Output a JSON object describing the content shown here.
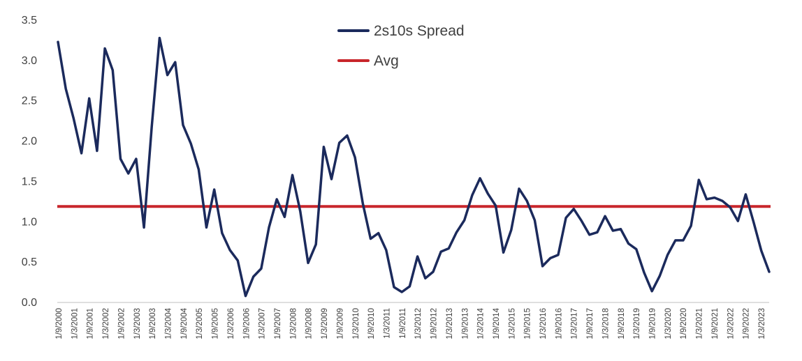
{
  "chart_data": {
    "type": "line",
    "title": "",
    "xlabel": "",
    "ylabel": "",
    "ylim": [
      0,
      3.5
    ],
    "yticks": [
      "0.0",
      "0.5",
      "1.0",
      "1.5",
      "2.0",
      "2.5",
      "3.0",
      "3.5"
    ],
    "grid": false,
    "legend_position": "top-center",
    "x_tick_labels": [
      "1/9/2000",
      "1/3/2001",
      "1/9/2001",
      "1/3/2002",
      "1/9/2002",
      "1/3/2003",
      "1/9/2003",
      "1/3/2004",
      "1/9/2004",
      "1/3/2005",
      "1/9/2005",
      "1/3/2006",
      "1/9/2006",
      "1/3/2007",
      "1/9/2007",
      "1/3/2008",
      "1/9/2008",
      "1/3/2009",
      "1/9/2009",
      "1/3/2010",
      "1/9/2010",
      "1/3/2011",
      "1/9/2011",
      "1/3/2012",
      "1/9/2012",
      "1/3/2013",
      "1/9/2013",
      "1/3/2014",
      "1/9/2014",
      "1/3/2015",
      "1/9/2015",
      "1/3/2016",
      "1/9/2016",
      "1/3/2017",
      "1/9/2017",
      "1/3/2018",
      "1/9/2018",
      "1/3/2019",
      "1/9/2019",
      "1/3/2020",
      "1/9/2020",
      "1/3/2021",
      "1/9/2021",
      "1/3/2022",
      "1/9/2022",
      "1/3/2023"
    ],
    "series": [
      {
        "name": "2s10s Spread",
        "color": "#1b2a5c",
        "values": [
          3.23,
          2.65,
          2.28,
          1.85,
          2.53,
          1.88,
          3.15,
          2.88,
          1.78,
          1.6,
          1.78,
          0.93,
          2.18,
          3.28,
          2.82,
          2.98,
          2.2,
          1.97,
          1.65,
          0.93,
          1.4,
          0.86,
          0.65,
          0.52,
          0.08,
          0.32,
          0.42,
          0.93,
          1.28,
          1.06,
          1.58,
          1.13,
          0.49,
          0.72,
          1.93,
          1.53,
          1.98,
          2.07,
          1.8,
          1.23,
          0.79,
          0.86,
          0.65,
          0.19,
          0.13,
          0.2,
          0.57,
          0.3,
          0.38,
          0.63,
          0.67,
          0.87,
          1.02,
          1.33,
          1.54,
          1.35,
          1.2,
          0.62,
          0.9,
          1.41,
          1.26,
          1.02,
          0.45,
          0.55,
          0.59,
          1.05,
          1.16,
          1.01,
          0.84,
          0.87,
          1.07,
          0.89,
          0.91,
          0.73,
          0.66,
          0.37,
          0.14,
          0.33,
          0.59,
          0.77,
          0.77,
          0.95,
          1.52,
          1.28,
          1.3,
          1.26,
          1.18,
          1.01,
          1.34,
          1.0,
          0.64,
          0.38
        ]
      },
      {
        "name": "Avg",
        "color": "#c8262b",
        "values": [
          1.19
        ]
      }
    ]
  }
}
